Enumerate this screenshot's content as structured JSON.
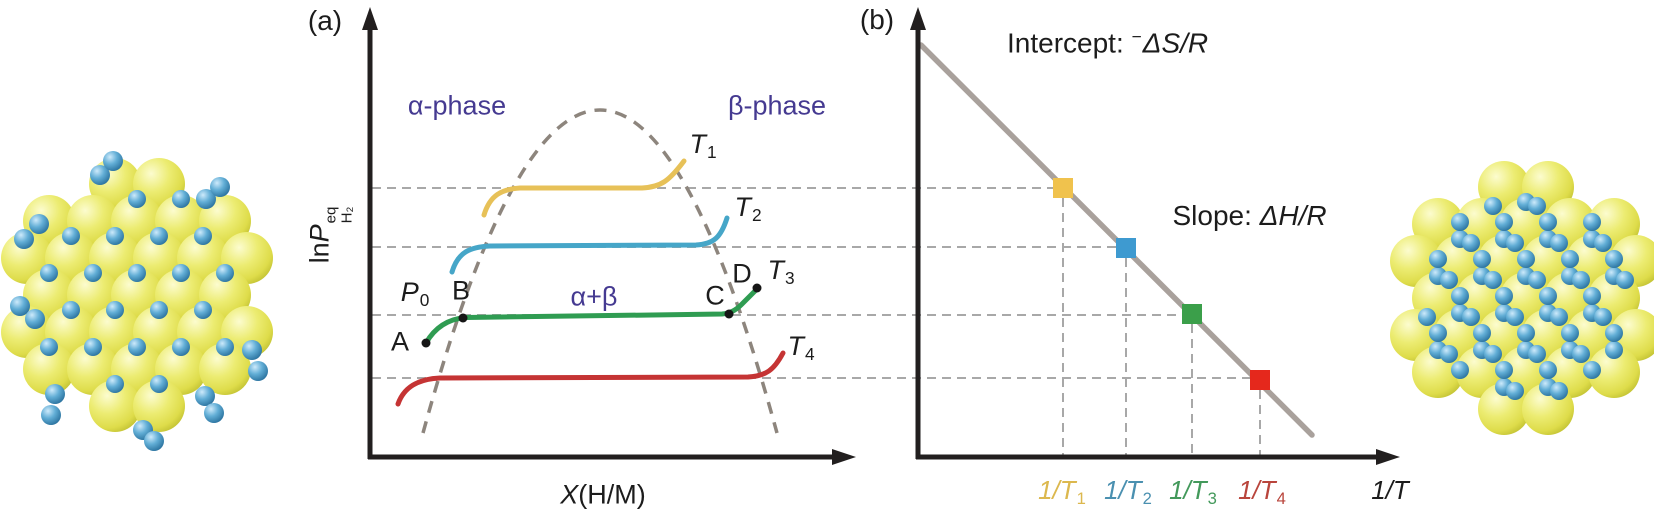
{
  "colors": {
    "phase_label_purple": "#453a91",
    "axis_black": "#221f1f",
    "dashed_guide_gray": "#a8a8a8",
    "dome_dash_gray": "#8d857d",
    "vant_hoff_line_gray": "#a9a19c",
    "point_black": "#161616"
  },
  "panel_a": {
    "tag": "(a)",
    "y_axis_label": {
      "fn": "ln",
      "symbol": "P",
      "sup": "eq",
      "sub": "H₂"
    },
    "x_axis_label": {
      "var": "X",
      "rest": "(H/M)"
    },
    "regions": {
      "alpha": "α-phase",
      "beta": "β-phase",
      "mixed": "α+β"
    },
    "pressure_ref": {
      "symbol": "P",
      "sub": "0"
    },
    "points": {
      "A": "A",
      "B": "B",
      "C": "C",
      "D": "D"
    },
    "isotherms": [
      {
        "symbol": "T",
        "sub": "1",
        "color": "#e7c158"
      },
      {
        "symbol": "T",
        "sub": "2",
        "color": "#46a6c8"
      },
      {
        "symbol": "T",
        "sub": "3",
        "color": "#2f9c52"
      },
      {
        "symbol": "T",
        "sub": "4",
        "color": "#c53434"
      }
    ]
  },
  "panel_b": {
    "tag": "(b)",
    "intercept": {
      "prefix": "Intercept: ",
      "sign": "−",
      "formula": "ΔS/R"
    },
    "slope": {
      "prefix": "Slope: ",
      "formula": "ΔH/R"
    },
    "axis_end_label": {
      "num": "1/",
      "symbol": "T"
    },
    "ticks": [
      {
        "num": "1/",
        "symbol": "T",
        "sub": "1",
        "color": "#dcb84e"
      },
      {
        "num": "1/",
        "symbol": "T",
        "sub": "2",
        "color": "#4a90b0"
      },
      {
        "num": "1/",
        "symbol": "T",
        "sub": "3",
        "color": "#43995b"
      },
      {
        "num": "1/",
        "symbol": "T",
        "sub": "4",
        "color": "#b9453c"
      }
    ],
    "markers": [
      {
        "color": "#f0c24d"
      },
      {
        "color": "#3e9ad0"
      },
      {
        "color": "#3b9f4a"
      },
      {
        "color": "#e5281c"
      }
    ]
  }
}
